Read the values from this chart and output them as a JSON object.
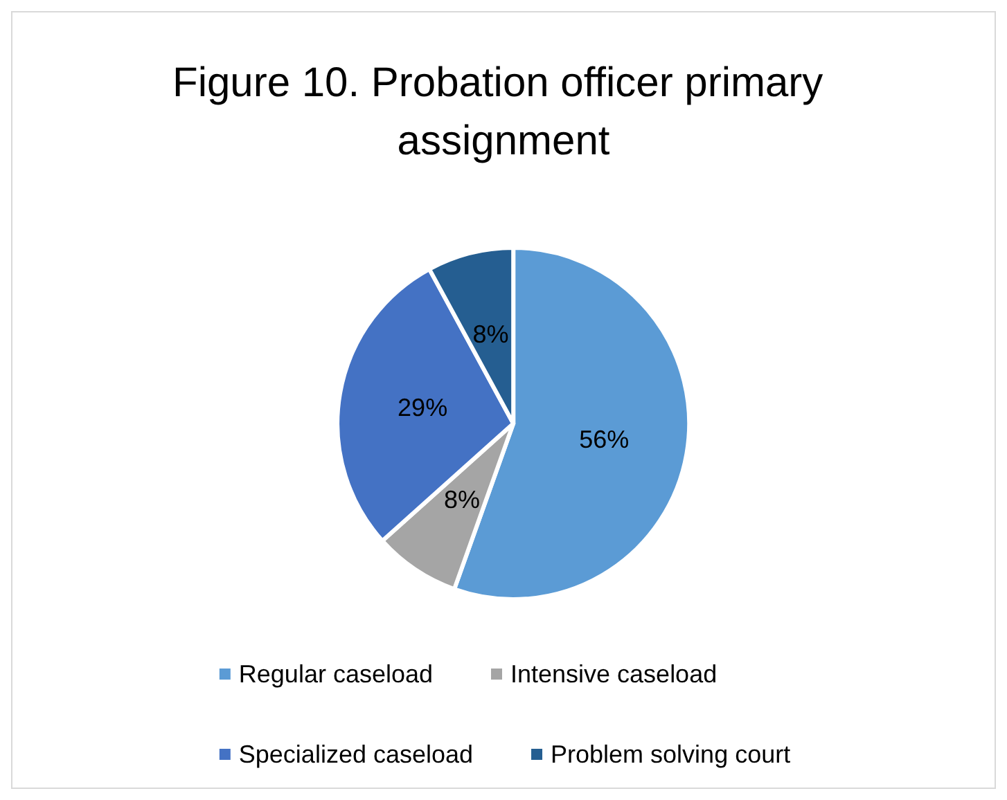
{
  "chart_data": {
    "type": "pie",
    "title": "Figure 10. Probation officer primary assignment",
    "categories": [
      "Regular caseload",
      "Intensive caseload",
      "Specialized caseload",
      "Problem solving court"
    ],
    "values": [
      56,
      8,
      29,
      8
    ],
    "colors": [
      "#5b9bd5",
      "#a5a5a5",
      "#4472c4",
      "#255e91"
    ],
    "value_labels": [
      "56%",
      "8%",
      "29%",
      "8%"
    ],
    "legend": "bottom"
  }
}
